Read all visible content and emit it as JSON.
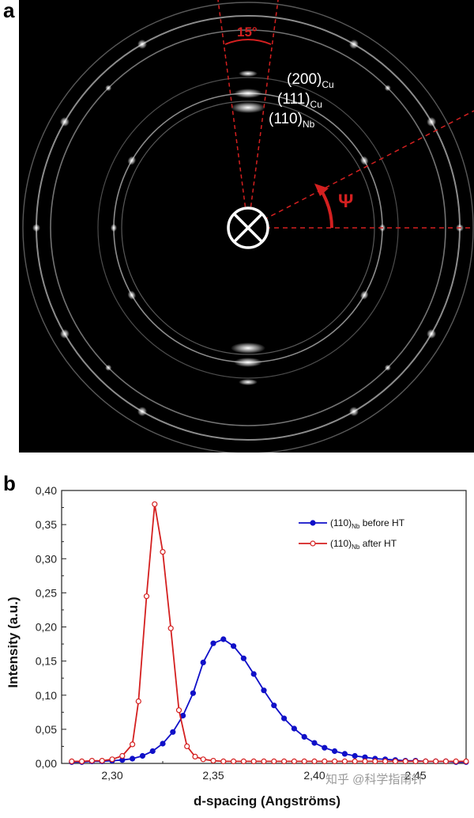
{
  "panel_a": {
    "letter": "a",
    "angle_label": "15°",
    "psi_label": "Ψ",
    "reflections": [
      {
        "main": "(200)",
        "sub": "Cu"
      },
      {
        "main": "(111)",
        "sub": "Cu"
      },
      {
        "main": "(110)",
        "sub": "Nb"
      }
    ],
    "colors": {
      "background": "#000000",
      "annotation": "#d42020",
      "rings": "#ffffff"
    }
  },
  "panel_b": {
    "letter": "b",
    "watermark": "知乎 @科学指南针"
  },
  "chart_data": {
    "type": "line",
    "xlabel": "d-spacing (Angströms)",
    "ylabel": "Intensity (a.u.)",
    "xlim": [
      2.275,
      2.475
    ],
    "ylim": [
      0.0,
      0.4
    ],
    "x_ticks": [
      "2,30",
      "2,35",
      "2,40",
      "2,45"
    ],
    "x_tick_values": [
      2.3,
      2.35,
      2.4,
      2.45
    ],
    "y_ticks": [
      "0,00",
      "0,05",
      "0,10",
      "0,15",
      "0,20",
      "0,25",
      "0,30",
      "0,35",
      "0,40"
    ],
    "y_tick_values": [
      0.0,
      0.05,
      0.1,
      0.15,
      0.2,
      0.25,
      0.3,
      0.35,
      0.4
    ],
    "grid": false,
    "legend_position": "top-right",
    "series": [
      {
        "name_main": "(110)",
        "name_sub": "Nb",
        "name_suffix": " before HT",
        "color": "#1010c8",
        "marker": "filled-circle",
        "x": [
          2.28,
          2.285,
          2.29,
          2.295,
          2.3,
          2.305,
          2.31,
          2.315,
          2.32,
          2.325,
          2.33,
          2.335,
          2.34,
          2.345,
          2.35,
          2.355,
          2.36,
          2.365,
          2.37,
          2.375,
          2.38,
          2.385,
          2.39,
          2.395,
          2.4,
          2.405,
          2.41,
          2.415,
          2.42,
          2.425,
          2.43,
          2.435,
          2.44,
          2.445,
          2.45,
          2.455,
          2.46,
          2.465,
          2.47,
          2.475
        ],
        "y": [
          0.002,
          0.002,
          0.003,
          0.003,
          0.004,
          0.005,
          0.007,
          0.011,
          0.018,
          0.029,
          0.046,
          0.07,
          0.103,
          0.148,
          0.176,
          0.182,
          0.172,
          0.154,
          0.131,
          0.107,
          0.085,
          0.066,
          0.051,
          0.039,
          0.03,
          0.023,
          0.018,
          0.014,
          0.011,
          0.009,
          0.007,
          0.006,
          0.005,
          0.004,
          0.004,
          0.003,
          0.003,
          0.003,
          0.002,
          0.002
        ]
      },
      {
        "name_main": "(110)",
        "name_sub": "Nb",
        "name_suffix": " after HT",
        "color": "#d42020",
        "marker": "open-circle",
        "x": [
          2.28,
          2.285,
          2.29,
          2.295,
          2.3,
          2.305,
          2.31,
          2.313,
          2.317,
          2.321,
          2.325,
          2.329,
          2.333,
          2.337,
          2.341,
          2.345,
          2.35,
          2.355,
          2.36,
          2.365,
          2.37,
          2.375,
          2.38,
          2.385,
          2.39,
          2.395,
          2.4,
          2.405,
          2.41,
          2.415,
          2.42,
          2.425,
          2.43,
          2.435,
          2.44,
          2.445,
          2.45,
          2.455,
          2.46,
          2.465,
          2.47,
          2.475
        ],
        "y": [
          0.003,
          0.003,
          0.004,
          0.004,
          0.006,
          0.011,
          0.028,
          0.091,
          0.245,
          0.38,
          0.31,
          0.198,
          0.078,
          0.025,
          0.01,
          0.006,
          0.004,
          0.003,
          0.003,
          0.003,
          0.003,
          0.003,
          0.003,
          0.003,
          0.003,
          0.003,
          0.003,
          0.003,
          0.003,
          0.003,
          0.003,
          0.003,
          0.003,
          0.003,
          0.003,
          0.003,
          0.003,
          0.003,
          0.003,
          0.003,
          0.003,
          0.003
        ]
      }
    ]
  }
}
